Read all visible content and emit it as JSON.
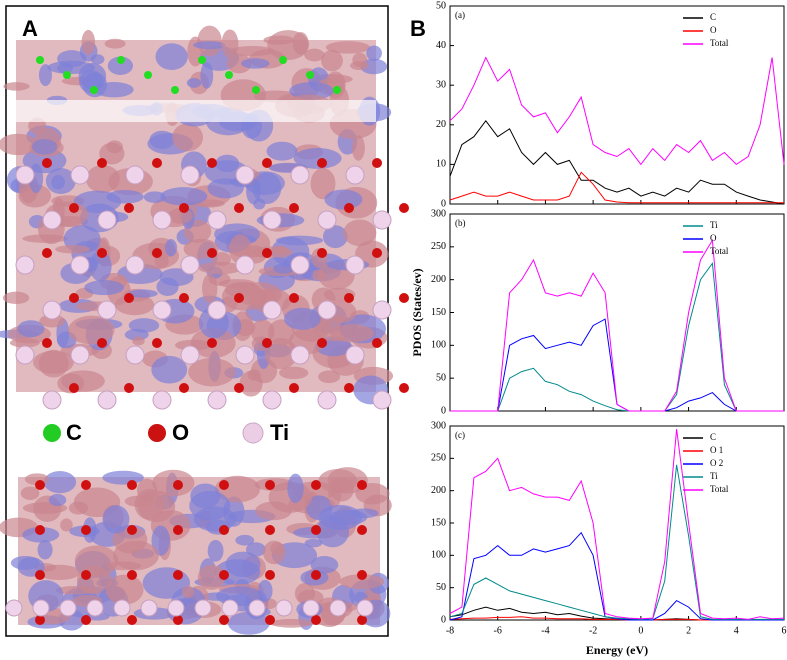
{
  "panel_a": {
    "label": "A",
    "legend": [
      "C",
      "O",
      "Ti"
    ]
  },
  "panel_b_label": "B",
  "chart_data": [
    {
      "type": "line",
      "annotation": "(a)",
      "x": [
        -8,
        -7.5,
        -7,
        -6.5,
        -6,
        -5.5,
        -5,
        -4.5,
        -4,
        -3.5,
        -3,
        -2.5,
        -2,
        -1.5,
        -1,
        -0.5,
        0,
        0.5,
        1,
        1.5,
        2,
        2.5,
        3,
        3.5,
        4,
        4.5,
        5,
        5.5,
        6
      ],
      "xlim": [
        -8,
        6
      ],
      "ylim": [
        0,
        50
      ],
      "yticks": [
        0,
        10,
        20,
        30,
        40,
        50
      ],
      "series": [
        {
          "name": "C",
          "color": "#000000",
          "values": [
            7,
            15,
            17,
            21,
            17,
            19,
            13,
            10,
            13,
            10,
            11,
            6,
            6,
            4,
            3,
            4,
            2,
            3,
            2,
            4,
            3,
            6,
            5,
            5,
            3,
            2,
            1,
            0.5,
            0
          ]
        },
        {
          "name": "O",
          "color": "#ff0000",
          "values": [
            1,
            2,
            3,
            2,
            2,
            3,
            2,
            1,
            1,
            1,
            2,
            8,
            5,
            1,
            0.5,
            0.3,
            0.3,
            0.3,
            0.3,
            0.3,
            0.3,
            0.3,
            0.3,
            0.3,
            0.3,
            0.3,
            0.3,
            0.3,
            0.3
          ]
        },
        {
          "name": "Total",
          "color": "#ff00ff",
          "values": [
            21,
            24,
            30,
            37,
            31,
            34,
            25,
            22,
            23,
            18,
            22,
            27,
            15,
            13,
            12,
            14,
            10,
            14,
            11,
            15,
            13,
            16,
            11,
            13,
            10,
            12,
            20,
            37,
            10
          ]
        }
      ]
    },
    {
      "type": "line",
      "annotation": "(b)",
      "ylabel": "PDOS (States/ev)",
      "x": [
        -8,
        -7.5,
        -7,
        -6.5,
        -6,
        -5.5,
        -5,
        -4.5,
        -4,
        -3.5,
        -3,
        -2.5,
        -2,
        -1.5,
        -1,
        -0.5,
        0,
        0.5,
        1,
        1.5,
        2,
        2.5,
        3,
        3.5,
        4,
        4.5,
        5,
        5.5,
        6
      ],
      "xlim": [
        -8,
        6
      ],
      "ylim": [
        0,
        300
      ],
      "yticks": [
        0,
        50,
        100,
        150,
        200,
        250,
        300
      ],
      "series": [
        {
          "name": "Ti",
          "color": "#008b8b",
          "values": [
            0,
            0,
            0,
            0,
            0,
            50,
            60,
            65,
            45,
            40,
            30,
            25,
            15,
            8,
            2,
            0,
            0,
            0,
            0,
            25,
            130,
            200,
            225,
            40,
            0,
            0,
            0,
            0,
            0
          ]
        },
        {
          "name": "O",
          "color": "#0000ff",
          "values": [
            0,
            0,
            0,
            0,
            0,
            100,
            110,
            115,
            95,
            100,
            105,
            100,
            130,
            140,
            10,
            0,
            0,
            0,
            0,
            5,
            15,
            20,
            28,
            10,
            0,
            0,
            0,
            0,
            0
          ]
        },
        {
          "name": "Total",
          "color": "#ff00ff",
          "values": [
            0,
            0,
            0,
            0,
            0,
            180,
            200,
            230,
            180,
            175,
            180,
            175,
            210,
            180,
            10,
            0,
            0,
            0,
            0,
            30,
            150,
            230,
            260,
            50,
            0,
            0,
            0,
            0,
            0
          ]
        }
      ]
    },
    {
      "type": "line",
      "annotation": "(c)",
      "xlabel": "Energy (eV)",
      "x": [
        -8,
        -7.5,
        -7,
        -6.5,
        -6,
        -5.5,
        -5,
        -4.5,
        -4,
        -3.5,
        -3,
        -2.5,
        -2,
        -1.5,
        -1,
        -0.5,
        0,
        0.5,
        1,
        1.5,
        2,
        2.5,
        3,
        3.5,
        4,
        4.5,
        5,
        5.5,
        6
      ],
      "xlim": [
        -8,
        6
      ],
      "xticks": [
        -8,
        -6,
        -4,
        -2,
        0,
        2,
        4,
        6
      ],
      "ylim": [
        0,
        300
      ],
      "yticks": [
        0,
        50,
        100,
        150,
        200,
        250,
        300
      ],
      "series": [
        {
          "name": "C",
          "color": "#000000",
          "values": [
            5,
            8,
            15,
            20,
            15,
            18,
            12,
            10,
            12,
            8,
            10,
            6,
            3,
            2,
            1,
            1,
            0,
            0,
            1,
            2,
            1,
            0,
            0,
            0,
            0,
            0,
            0,
            0,
            0
          ]
        },
        {
          "name": "O 1",
          "color": "#ff0000",
          "values": [
            1,
            2,
            3,
            3,
            4,
            4,
            5,
            3,
            3,
            2,
            2,
            2,
            1,
            1,
            1,
            0,
            0,
            0,
            1,
            1,
            1,
            0,
            0,
            0,
            0,
            0,
            0,
            0,
            0
          ]
        },
        {
          "name": "O 2",
          "color": "#0000ff",
          "values": [
            0,
            5,
            95,
            100,
            115,
            100,
            100,
            110,
            105,
            110,
            115,
            135,
            100,
            5,
            2,
            0,
            0,
            0,
            10,
            30,
            20,
            2,
            0,
            0,
            0,
            0,
            0,
            0,
            0
          ]
        },
        {
          "name": "Ti",
          "color": "#008b8b",
          "values": [
            5,
            10,
            55,
            65,
            55,
            45,
            40,
            35,
            30,
            25,
            20,
            15,
            10,
            5,
            3,
            2,
            1,
            2,
            60,
            240,
            130,
            5,
            1,
            1,
            1,
            1,
            1,
            1,
            1
          ]
        },
        {
          "name": "Total",
          "color": "#ff00ff",
          "values": [
            10,
            20,
            220,
            230,
            250,
            200,
            205,
            195,
            190,
            190,
            185,
            215,
            150,
            10,
            5,
            3,
            2,
            3,
            90,
            295,
            150,
            10,
            3,
            2,
            3,
            1,
            5,
            2,
            3
          ]
        }
      ]
    }
  ]
}
